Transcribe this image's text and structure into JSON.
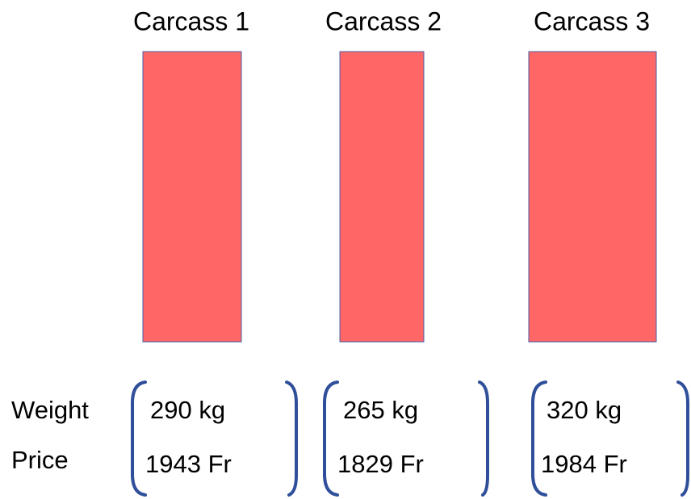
{
  "columns": [
    {
      "title": "Carcass 1",
      "weight": "290 kg",
      "price": "1943 Fr"
    },
    {
      "title": "Carcass 2",
      "weight": "265 kg",
      "price": "1829 Fr"
    },
    {
      "title": "Carcass 3",
      "weight": "320 kg",
      "price": "1984 Fr"
    }
  ],
  "row_labels": [
    "Weight",
    "Price"
  ]
}
